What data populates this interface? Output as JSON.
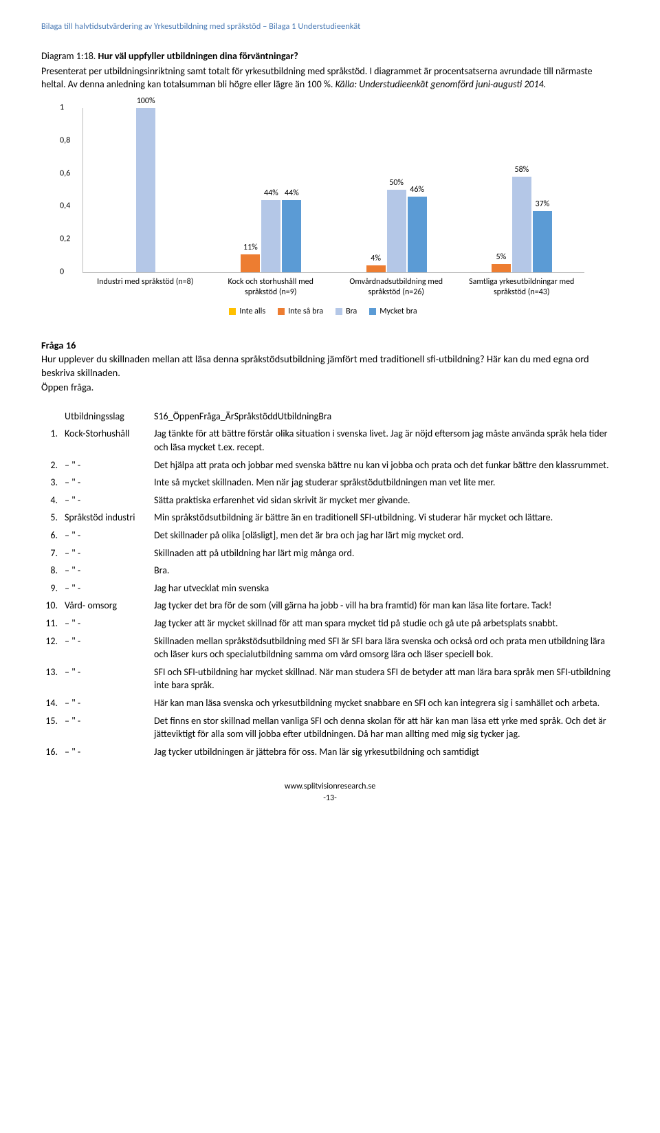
{
  "header": "Bilaga till halvtidsutvärdering av Yrkesutbildning med språkstöd – Bilaga 1 Understudieenkät",
  "diagram": {
    "labelPrefix": "Diagram 1:18.",
    "titleBold": "Hur väl uppfyller utbildningen dina förväntningar?",
    "desc": "Presenterat per utbildningsinriktning samt totalt för yrkesutbildning med språkstöd. I diagrammet är procentsatserna avrundade till närmaste heltal. Av denna anledning kan totalsumman bli högre eller lägre än 100 %. ",
    "descItalic": "Källa: Understudieenkät genomförd juni-augusti 2014."
  },
  "chart": {
    "yMax": 1.0,
    "yTicks": [
      "0",
      "0,2",
      "0,4",
      "0,6",
      "0,8",
      "1"
    ],
    "colors": {
      "inteAlls": "#ffc000",
      "inteSaBra": "#ed7d31",
      "bra": "#b4c7e7",
      "mycketBra": "#5b9bd5"
    },
    "legend": [
      {
        "key": "inteAlls",
        "label": "Inte alls"
      },
      {
        "key": "inteSaBra",
        "label": "Inte så bra"
      },
      {
        "key": "bra",
        "label": "Bra"
      },
      {
        "key": "mycketBra",
        "label": "Mycket bra"
      }
    ],
    "groups": [
      {
        "label": "Industri med språkstöd (n=8)",
        "bars": [
          {
            "colorKey": "bra",
            "value": 1.0,
            "text": "100%"
          }
        ]
      },
      {
        "label": "Kock och storhushåll med språkstöd (n=9)",
        "bars": [
          {
            "colorKey": "inteSaBra",
            "value": 0.11,
            "text": "11%"
          },
          {
            "colorKey": "bra",
            "value": 0.44,
            "text": "44%"
          },
          {
            "colorKey": "mycketBra",
            "value": 0.44,
            "text": "44%"
          }
        ]
      },
      {
        "label": "Omvårdnadsutbildning med språkstöd (n=26)",
        "bars": [
          {
            "colorKey": "inteSaBra",
            "value": 0.04,
            "text": "4%"
          },
          {
            "colorKey": "bra",
            "value": 0.5,
            "text": "50%"
          },
          {
            "colorKey": "mycketBra",
            "value": 0.46,
            "text": "46%"
          }
        ]
      },
      {
        "label": "Samtliga yrkesutbildningar med språkstöd (n=43)",
        "bars": [
          {
            "colorKey": "inteSaBra",
            "value": 0.05,
            "text": "5%"
          },
          {
            "colorKey": "bra",
            "value": 0.58,
            "text": "58%"
          },
          {
            "colorKey": "mycketBra",
            "value": 0.37,
            "text": "37%"
          }
        ]
      }
    ]
  },
  "question": {
    "title": "Fråga 16",
    "text": "Hur upplever du skillnaden mellan att läsa denna språkstödsutbildning jämfört med traditionell sfi-utbildning? Här kan du med egna ord beskriva skillnaden.",
    "open": "Öppen fråga."
  },
  "table": {
    "colHeaders": [
      "",
      "Utbildningsslag",
      "S16_ÖppenFråga_ÄrSpråkstöddUtbildningBra"
    ],
    "rows": [
      {
        "n": "1.",
        "type": "Kock-Storhushåll",
        "text": "Jag tänkte för att bättre förstår olika situation i svenska livet. Jag är nöjd eftersom jag måste använda språk hela tider och läsa mycket t.ex. recept."
      },
      {
        "n": "2.",
        "type": "– \" -",
        "text": "Det hjälpa att prata och jobbar med svenska bättre nu kan vi jobba och prata och det funkar bättre den klassrummet."
      },
      {
        "n": "3.",
        "type": "– \" -",
        "text": "Inte så mycket skillnaden. Men när jag studerar språkstödutbildningen man vet lite mer."
      },
      {
        "n": "4.",
        "type": "– \" -",
        "text": "Sätta praktiska erfarenhet vid sidan skrivit är mycket mer givande."
      },
      {
        "n": "5.",
        "type": "Språkstöd industri",
        "text": "Min språkstödsutbildning är bättre än en traditionell SFI-utbildning. Vi studerar här mycket och lättare."
      },
      {
        "n": "6.",
        "type": "– \" -",
        "text": "Det skillnader på olika [oläsligt], men det är bra och jag har lärt mig mycket ord."
      },
      {
        "n": "7.",
        "type": "– \" -",
        "text": "Skillnaden att på utbildning har lärt mig många ord."
      },
      {
        "n": "8.",
        "type": "– \" -",
        "text": "Bra."
      },
      {
        "n": "9.",
        "type": "– \" -",
        "text": "Jag har utvecklat min svenska"
      },
      {
        "n": "10.",
        "type": "Vård- omsorg",
        "text": "Jag tycker det bra för de som (vill gärna ha jobb - vill ha bra framtid) för man kan läsa lite fortare. Tack!"
      },
      {
        "n": "11.",
        "type": "– \" -",
        "text": "Jag tycker att är mycket skillnad för att man spara mycket tid på studie och gå ute på arbetsplats snabbt."
      },
      {
        "n": "12.",
        "type": "– \" -",
        "text": "Skillnaden mellan språkstödsutbildning med SFI är SFI bara lära svenska och också ord och prata men utbildning lära och läser kurs och specialutbildning samma om vård omsorg lära och läser speciell bok."
      },
      {
        "n": "13.",
        "type": "– \" -",
        "text": "SFI och SFI-utbildning har mycket skillnad. När man studera SFI de betyder att man lära bara språk men SFI-utbildning inte bara språk."
      },
      {
        "n": "14.",
        "type": "– \" -",
        "text": "Här kan man läsa svenska och yrkesutbildning mycket snabbare en SFI och kan integrera sig i samhället och arbeta."
      },
      {
        "n": "15.",
        "type": "– \" -",
        "text": "Det finns en stor skillnad mellan vanliga SFI och denna skolan för att här kan man läsa ett yrke med språk. Och det är jätteviktigt för alla som vill jobba efter utbildningen. Då har man allting med mig sig tycker jag."
      },
      {
        "n": "16.",
        "type": "– \" -",
        "text": "Jag tycker utbildningen är jättebra för oss. Man lär sig yrkesutbildning och samtidigt"
      }
    ]
  },
  "footer": {
    "url": "www.splitvisionresearch.se",
    "page": "-13-"
  }
}
